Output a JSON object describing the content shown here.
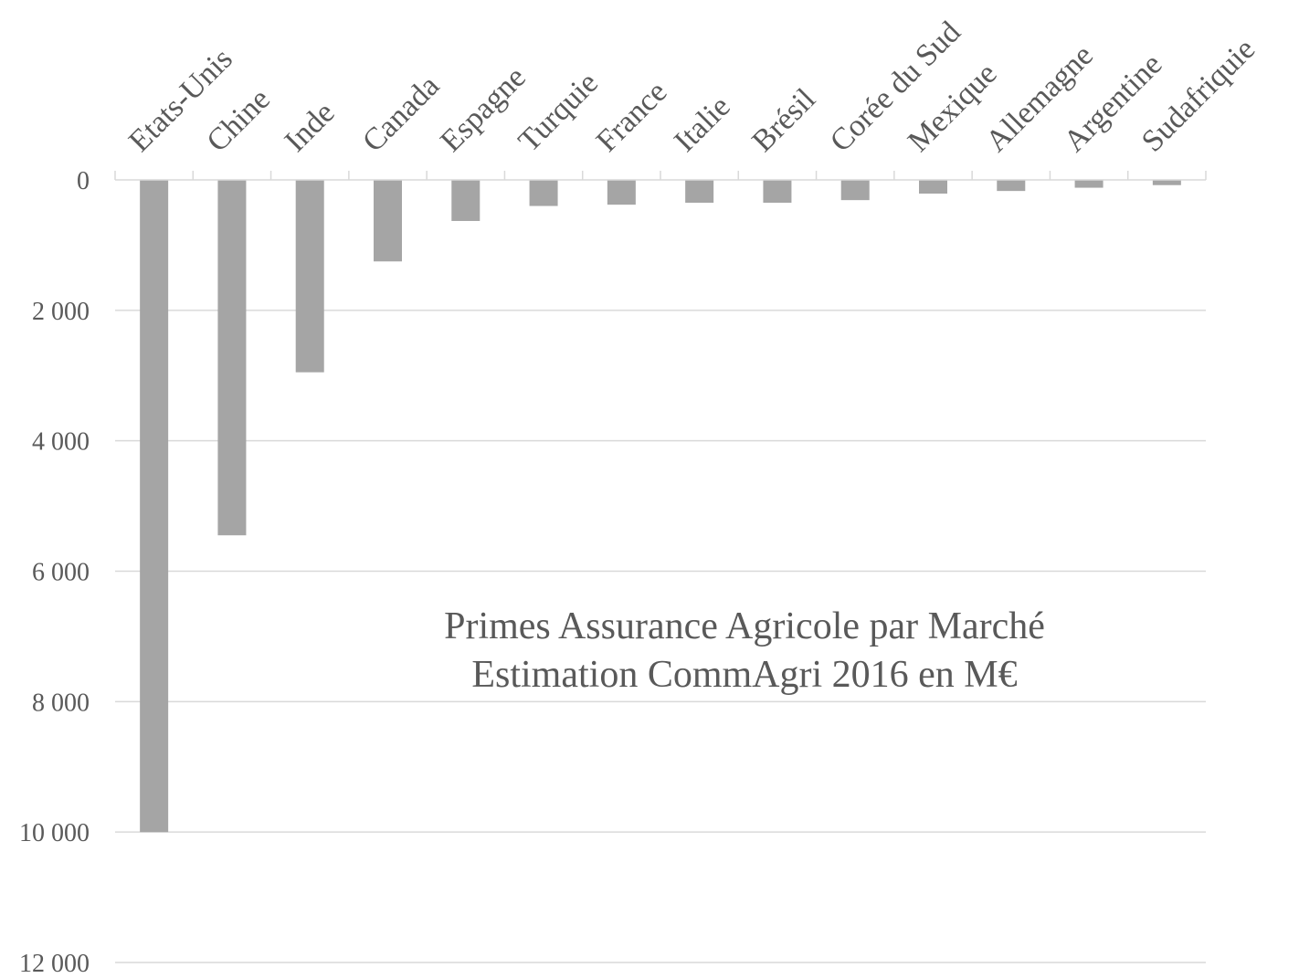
{
  "chart_data": {
    "type": "bar",
    "orientation": "vertical",
    "y_axis_inverted": true,
    "title_lines": [
      "Primes Assurance Agricole par Marché",
      "Estimation CommAgri 2016 en M€"
    ],
    "xlabel": "",
    "ylabel": "",
    "categories": [
      "Etats-Unis",
      "Chine",
      "Inde",
      "Canada",
      "Espagne",
      "Turquie",
      "France",
      "Italie",
      "Brésil",
      "Corée du Sud",
      "Mexique",
      "Allemagne",
      "Argentine",
      "Sudafriquie"
    ],
    "values": [
      10000,
      5450,
      2950,
      1250,
      630,
      400,
      380,
      350,
      350,
      310,
      210,
      170,
      120,
      80
    ],
    "ylim": [
      0,
      12000
    ],
    "y_ticks": [
      0,
      2000,
      4000,
      6000,
      8000,
      10000,
      12000
    ],
    "y_tick_labels": [
      "0",
      "2 000",
      "4 000",
      "6 000",
      "8 000",
      "10 000",
      "12 000"
    ],
    "grid": true,
    "legend": "none",
    "bar_color": "#a5a5a5",
    "grid_color": "#d9d9d9",
    "text_color": "#595959"
  }
}
